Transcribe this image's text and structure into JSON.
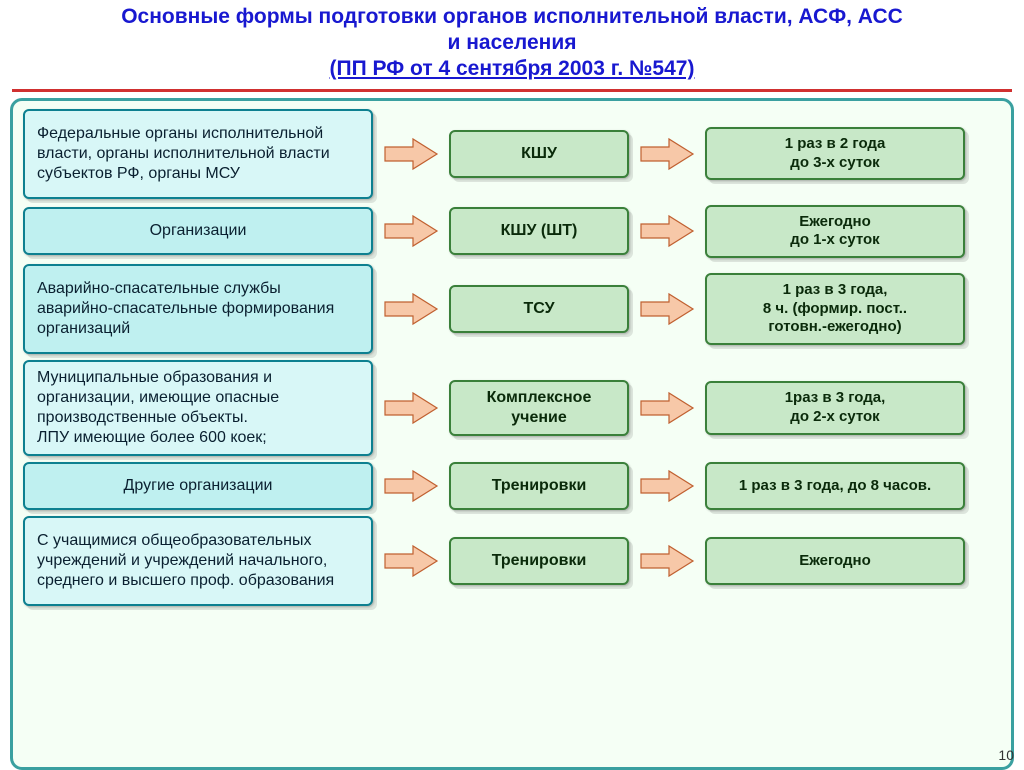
{
  "title": {
    "line1": "Основные формы подготовки органов исполнительной власти, АСФ, АСС",
    "line2": "и населения",
    "subtitle": "(ПП РФ от 4 сентября 2003 г. №547)"
  },
  "colors": {
    "title_text": "#1818d0",
    "title_underline": "#d03030",
    "content_border": "#3aa0a0",
    "content_bg": "#f5fff5",
    "left_fill": "#bff0f0",
    "left_light_fill": "#d8f7f7",
    "left_border": "#0d8090",
    "green_fill": "#c8e8c8",
    "green_border": "#3a803a",
    "arrow_fill": "#f7c8a8",
    "arrow_stroke": "#c06030"
  },
  "layout": {
    "grid_columns": "350px 60px 180px 60px 260px",
    "row_gap": 6
  },
  "rows": [
    {
      "left": "Федеральные органы исполнительной власти, органы исполнительной власти субъектов РФ, органы МСУ",
      "left_variant": "light",
      "mid": "КШУ",
      "right": "1 раз в 2 года\nдо 3-х  суток",
      "left_tall": true
    },
    {
      "left": "Организации",
      "mid": "КШУ (ШТ)",
      "right": "Ежегодно\nдо 1-х  суток"
    },
    {
      "left": "Аварийно-спасательные службы аварийно-спасательные формирования организаций",
      "mid": "ТСУ",
      "right": "1 раз в 3 года,\n8 ч. (формир. пост..\nготовн.-ежегодно)",
      "left_tall": true
    },
    {
      "left": "Муниципальные образования и организации, имеющие опасные производственные объекты.\nЛПУ имеющие более 600 коек;",
      "left_variant": "light",
      "mid": "Комплексное учение",
      "right": "1раз в 3 года,\nдо 2-х суток",
      "left_tall": true
    },
    {
      "left": "Другие организации",
      "mid": "Тренировки",
      "right": "1 раз в 3 года,  до 8 часов."
    },
    {
      "left": "С учащимися общеобразовательных учреждений и учреждений начального, среднего и высшего проф. образования",
      "left_variant": "light",
      "mid": "Тренировки",
      "right": "Ежегодно",
      "left_tall": true
    }
  ],
  "arrow": {
    "width": 56,
    "height": 34
  },
  "page_number": "10"
}
